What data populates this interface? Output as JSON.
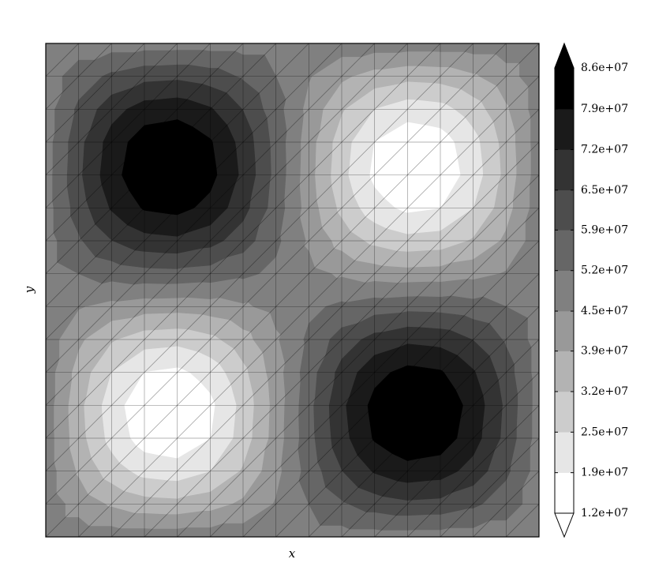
{
  "chart_data": {
    "type": "contour",
    "xlabel": "x",
    "ylabel": "y",
    "levels": [
      {
        "value": 12000000.0,
        "label": "1.2e+07"
      },
      {
        "value": 18700000.0,
        "label": "1.9e+07"
      },
      {
        "value": 25400000.0,
        "label": "2.5e+07"
      },
      {
        "value": 32100000.0,
        "label": "3.2e+07"
      },
      {
        "value": 38800000.0,
        "label": "3.9e+07"
      },
      {
        "value": 45400000.0,
        "label": "4.5e+07"
      },
      {
        "value": 52100000.0,
        "label": "5.2e+07"
      },
      {
        "value": 58800000.0,
        "label": "5.9e+07"
      },
      {
        "value": 65400000.0,
        "label": "6.5e+07"
      },
      {
        "value": 72100000.0,
        "label": "7.2e+07"
      },
      {
        "value": 78800000.0,
        "label": "7.9e+07"
      },
      {
        "value": 85600000.0,
        "label": "8.6e+07"
      }
    ],
    "colors": [
      "#ffffff",
      "#e6e6e6",
      "#cccccc",
      "#b3b3b3",
      "#999999",
      "#808080",
      "#666666",
      "#4d4d4d",
      "#333333",
      "#1a1a1a",
      "#000000"
    ],
    "extend": "both",
    "mesh": true,
    "z": [
      [
        49000000.0,
        49000000.0,
        49000000.0,
        49000000.0,
        49000000.0,
        49000000.0,
        49000000.0,
        49000000.0,
        49000000.0,
        49000000.0,
        49000000.0,
        49000000.0,
        49000000.0,
        49000000.0,
        49000000.0,
        49000000.0
      ],
      [
        49000000.0,
        55100000.0,
        60200000.0,
        63300000.0,
        64000000.0,
        62000000.0,
        57900000.0,
        52100000.0,
        45900000.0,
        40100000.0,
        36000000.0,
        34000000.0,
        34700000.0,
        37800000.0,
        42900000.0,
        49000000.0
      ],
      [
        49000000.0,
        60200000.0,
        69400000.0,
        75200000.0,
        76400000.0,
        72800000.0,
        65200000.0,
        54700000.0,
        43300000.0,
        32800000.0,
        25200000.0,
        21600000.0,
        22900000.0,
        28600000.0,
        37800000.0,
        49000000.0
      ],
      [
        49000000.0,
        63300000.0,
        75100000.0,
        82500000.0,
        84000000.0,
        79500000.0,
        69700000.0,
        56300000.0,
        41700000.0,
        28300000.0,
        18500000.0,
        14000000.0,
        15500000.0,
        22900000.0,
        34700000.0,
        49000000.0
      ],
      [
        49000000.0,
        64000000.0,
        76400000.0,
        84000000.0,
        85600000.0,
        80900000.0,
        70700000.0,
        56700000.0,
        41300000.0,
        27400000.0,
        17100000.0,
        12400000.0,
        14000000.0,
        21600000.0,
        34000000.0,
        49000000.0
      ],
      [
        49000000.0,
        62000000.0,
        72800000.0,
        79500000.0,
        80900000.0,
        76800000.0,
        67800000.0,
        55700000.0,
        42300000.0,
        30200000.0,
        21300000.0,
        17100000.0,
        18500000.0,
        25200000.0,
        36000000.0,
        49000000.0
      ],
      [
        49000000.0,
        57900000.0,
        65200000.0,
        69700000.0,
        70700000.0,
        67800000.0,
        61800000.0,
        53500000.0,
        44500000.0,
        36200000.0,
        30200000.0,
        27400000.0,
        28300000.0,
        32800000.0,
        40100000.0,
        49000000.0
      ],
      [
        49000000.0,
        52100000.0,
        54700000.0,
        56300000.0,
        56700000.0,
        55700000.0,
        53500000.0,
        50600000.0,
        47400000.0,
        44500000.0,
        42300000.0,
        41300000.0,
        41700000.0,
        43300000.0,
        45900000.0,
        49000000.0
      ],
      [
        49000000.0,
        45900000.0,
        43300000.0,
        41700000.0,
        41300000.0,
        42300000.0,
        44500000.0,
        47400000.0,
        50600000.0,
        53500000.0,
        55700000.0,
        56700000.0,
        56300000.0,
        54700000.0,
        52100000.0,
        49000000.0
      ],
      [
        49000000.0,
        40100000.0,
        32800000.0,
        28300000.0,
        27400000.0,
        30200000.0,
        36200000.0,
        44500000.0,
        53500000.0,
        61800000.0,
        67800000.0,
        70700000.0,
        69700000.0,
        65200000.0,
        57900000.0,
        49000000.0
      ],
      [
        49000000.0,
        36000000.0,
        25200000.0,
        18500000.0,
        17100000.0,
        21300000.0,
        30200000.0,
        42300000.0,
        55700000.0,
        67800000.0,
        76800000.0,
        80900000.0,
        79500000.0,
        72800000.0,
        62000000.0,
        49000000.0
      ],
      [
        49000000.0,
        34000000.0,
        21600000.0,
        14000000.0,
        12400000.0,
        17100000.0,
        27400000.0,
        41300000.0,
        56700000.0,
        70700000.0,
        80900000.0,
        85600000.0,
        84000000.0,
        76400000.0,
        64000000.0,
        49000000.0
      ],
      [
        49000000.0,
        34700000.0,
        22900000.0,
        15500000.0,
        14000000.0,
        18500000.0,
        28300000.0,
        41700000.0,
        56300000.0,
        69700000.0,
        79500000.0,
        84000000.0,
        82500000.0,
        75100000.0,
        63300000.0,
        49000000.0
      ],
      [
        49000000.0,
        37800000.0,
        28600000.0,
        22900000.0,
        21600000.0,
        25200000.0,
        32800000.0,
        43300000.0,
        54700000.0,
        65200000.0,
        72800000.0,
        76400000.0,
        75200000.0,
        69400000.0,
        60200000.0,
        49000000.0
      ],
      [
        49000000.0,
        42900000.0,
        37800000.0,
        34700000.0,
        34000000.0,
        36000000.0,
        40100000.0,
        45900000.0,
        52100000.0,
        57900000.0,
        62000000.0,
        64000000.0,
        63300000.0,
        60200000.0,
        55100000.0,
        49000000.0
      ],
      [
        49000000.0,
        49000000.0,
        49000000.0,
        49000000.0,
        49000000.0,
        49000000.0,
        49000000.0,
        49000000.0,
        49000000.0,
        49000000.0,
        49000000.0,
        49000000.0,
        49000000.0,
        49000000.0,
        49000000.0,
        49000000.0
      ]
    ]
  }
}
